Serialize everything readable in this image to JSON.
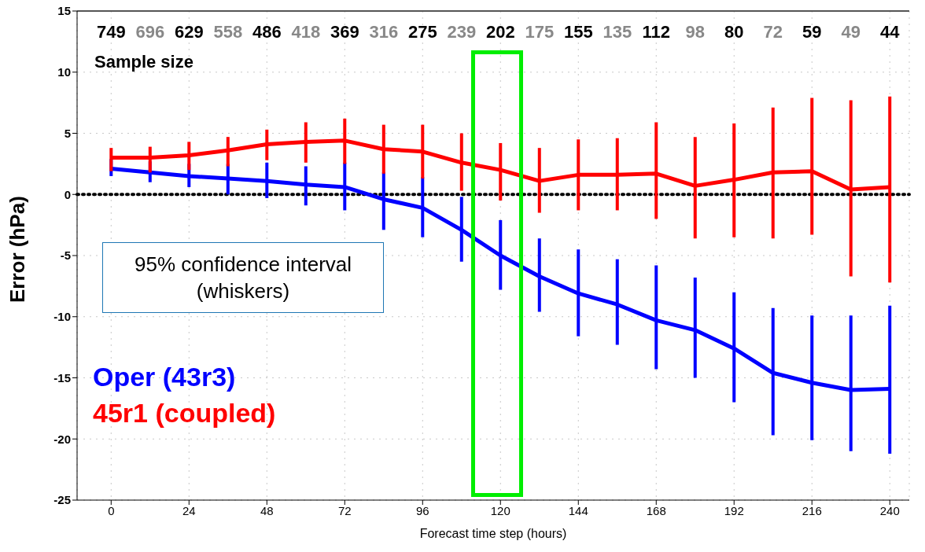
{
  "chart_data": {
    "type": "line",
    "xlabel": "Forecast time step (hours)",
    "ylabel": "Error (hPa)",
    "x": [
      0,
      12,
      24,
      36,
      48,
      60,
      72,
      84,
      96,
      108,
      120,
      132,
      144,
      156,
      168,
      180,
      192,
      204,
      216,
      228,
      240
    ],
    "series": [
      {
        "name": "Oper (43r3)",
        "color": "#0000ff",
        "values": [
          2.1,
          1.8,
          1.5,
          1.3,
          1.1,
          0.8,
          0.6,
          -0.4,
          -1.1,
          -2.9,
          -5.0,
          -6.7,
          -8.1,
          -9.0,
          -10.3,
          -11.1,
          -12.6,
          -14.6,
          -15.4,
          -16.0,
          -15.9
        ],
        "errors": [
          [
            1.5,
            2.9
          ],
          [
            1.0,
            2.7
          ],
          [
            0.6,
            2.5
          ],
          [
            0.0,
            2.5
          ],
          [
            -0.3,
            2.6
          ],
          [
            -0.9,
            2.3
          ],
          [
            -1.3,
            2.6
          ],
          [
            -2.9,
            1.8
          ],
          [
            -3.5,
            1.4
          ],
          [
            -5.5,
            -0.2
          ],
          [
            -7.8,
            -2.1
          ],
          [
            -9.6,
            -3.6
          ],
          [
            -11.6,
            -4.5
          ],
          [
            -12.3,
            -5.3
          ],
          [
            -14.3,
            -5.8
          ],
          [
            -15.0,
            -6.8
          ],
          [
            -17.0,
            -8.0
          ],
          [
            -19.7,
            -9.3
          ],
          [
            -20.1,
            -9.9
          ],
          [
            -21.0,
            -9.9
          ],
          [
            -21.2,
            -9.1
          ]
        ]
      },
      {
        "name": "45r1 (coupled)",
        "color": "#ff0000",
        "values": [
          3.0,
          3.0,
          3.2,
          3.6,
          4.1,
          4.3,
          4.4,
          3.7,
          3.5,
          2.6,
          2.0,
          1.1,
          1.6,
          1.6,
          1.7,
          0.7,
          1.2,
          1.8,
          1.9,
          0.4,
          0.6
        ],
        "errors": [
          [
            1.9,
            3.8
          ],
          [
            1.8,
            3.9
          ],
          [
            2.0,
            4.3
          ],
          [
            2.3,
            4.7
          ],
          [
            2.8,
            5.3
          ],
          [
            2.6,
            5.9
          ],
          [
            2.5,
            6.2
          ],
          [
            1.7,
            5.7
          ],
          [
            1.3,
            5.7
          ],
          [
            0.3,
            5.0
          ],
          [
            -0.5,
            4.2
          ],
          [
            -1.5,
            3.8
          ],
          [
            -1.3,
            4.5
          ],
          [
            -1.3,
            4.6
          ],
          [
            -2.0,
            5.9
          ],
          [
            -3.6,
            4.7
          ],
          [
            -3.5,
            5.8
          ],
          [
            -3.6,
            7.1
          ],
          [
            -3.3,
            7.9
          ],
          [
            -6.7,
            7.7
          ],
          [
            -7.2,
            8.0
          ]
        ]
      }
    ],
    "xlim": [
      -10.5,
      246
    ],
    "xticks": [
      0,
      24,
      48,
      72,
      96,
      120,
      144,
      168,
      192,
      216,
      240
    ],
    "ylim": [
      -25,
      15
    ],
    "yticks": [
      -25,
      -20,
      -15,
      -10,
      -5,
      0,
      5,
      10,
      15
    ],
    "grid": true,
    "legend": "left",
    "marker": "none",
    "line_style": "solid",
    "ref_lines": [
      {
        "axis": "y",
        "value": 0,
        "color": "#000000",
        "line_style": "dotted"
      }
    ],
    "annotations": [
      "749",
      "696",
      "629",
      "558",
      "486",
      "418",
      "369",
      "316",
      "275",
      "239",
      "202",
      "175",
      "155",
      "135",
      "112",
      "98",
      "80",
      "72",
      "59",
      "49",
      "44",
      "Sample size",
      "95% confidence interval (whiskers)"
    ]
  }
}
